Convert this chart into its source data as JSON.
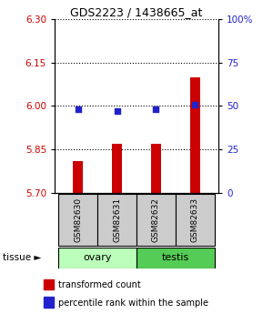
{
  "title": "GDS2223 / 1438665_at",
  "samples": [
    "GSM82630",
    "GSM82631",
    "GSM82632",
    "GSM82633"
  ],
  "tissue_groups": [
    {
      "name": "ovary",
      "indices": [
        0,
        1
      ],
      "color": "#bbffbb"
    },
    {
      "name": "testis",
      "indices": [
        2,
        3
      ],
      "color": "#55cc55"
    }
  ],
  "transformed_counts": [
    5.81,
    5.87,
    5.87,
    6.1
  ],
  "percentile_ranks": [
    48,
    47,
    48,
    51
  ],
  "ylim_left": [
    5.7,
    6.3
  ],
  "yticks_left": [
    5.7,
    5.85,
    6.0,
    6.15,
    6.3
  ],
  "ylim_right": [
    0,
    100
  ],
  "yticks_right": [
    0,
    25,
    50,
    75,
    100
  ],
  "ytick_labels_right": [
    "0",
    "25",
    "50",
    "75",
    "100%"
  ],
  "bar_color": "#cc0000",
  "dot_color": "#2222cc",
  "bar_bottom": 5.7,
  "left_tick_color": "#cc0000",
  "right_tick_color": "#2222cc",
  "legend_items": [
    {
      "color": "#cc0000",
      "label": "transformed count"
    },
    {
      "color": "#2222cc",
      "label": "percentile rank within the sample"
    }
  ]
}
